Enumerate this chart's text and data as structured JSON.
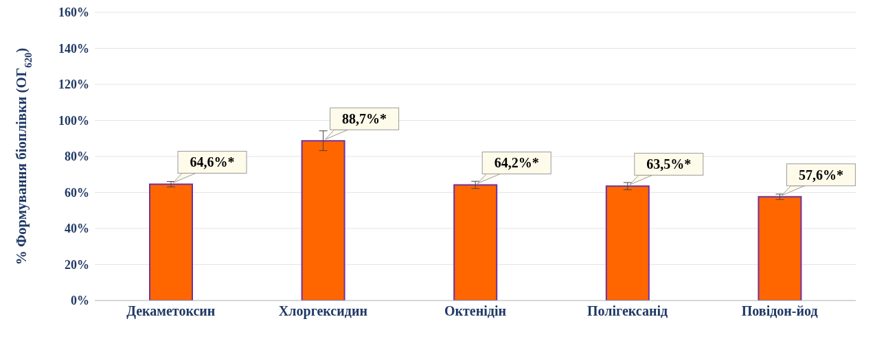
{
  "chart_data": {
    "type": "bar",
    "ylabel": "% Формування біоплівки (ОГ$_{620}$)",
    "categories": [
      "Декаметоксин",
      "Хлоргексидин",
      "Октенідін",
      "Полігексанід",
      "Повідон-йод"
    ],
    "values": [
      64.6,
      88.7,
      64.2,
      63.5,
      57.6
    ],
    "errors": [
      1.5,
      5.5,
      2,
      2,
      1.5
    ],
    "value_labels": [
      "64,6%*",
      "88,7%*",
      "64,2%*",
      "63,5%*",
      "57,6%*"
    ],
    "color": "#ff6600",
    "ylim": [
      0,
      160
    ],
    "yticks": [
      {
        "value": 0,
        "label": "0%"
      },
      {
        "value": 20,
        "label": "20%"
      },
      {
        "value": 40,
        "label": "40%"
      },
      {
        "value": 60,
        "label": "60%"
      },
      {
        "value": 80,
        "label": "80%"
      },
      {
        "value": 100,
        "label": "100%"
      },
      {
        "value": 120,
        "label": "120%"
      },
      {
        "value": 140,
        "label": "140%"
      },
      {
        "value": 160,
        "label": "160%"
      }
    ],
    "grid": "y"
  }
}
